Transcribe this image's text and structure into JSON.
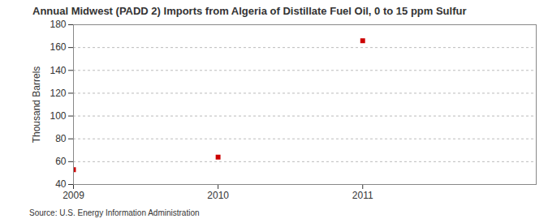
{
  "chart_data": {
    "type": "scatter",
    "title": "Annual Midwest (PADD 2) Imports from Algeria of Distillate Fuel Oil, 0 to 15 ppm Sulfur",
    "y_label": "Thousand Barrels",
    "source": "Source: U.S. Energy Information Administration",
    "x": [
      2009,
      2010,
      2011
    ],
    "values": [
      53,
      64,
      166
    ],
    "color": "#cc0000",
    "marker": "square",
    "xlim": [
      2009,
      2012.2
    ],
    "xticks": [
      2009,
      2010,
      2011
    ],
    "ylim": [
      40,
      180
    ],
    "yticks": [
      40,
      60,
      80,
      100,
      120,
      140,
      160,
      180
    ],
    "grid": true
  }
}
